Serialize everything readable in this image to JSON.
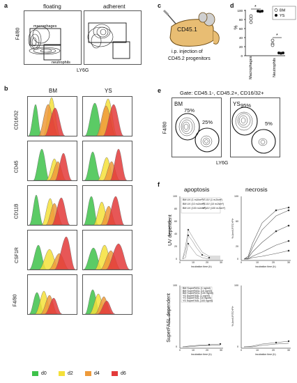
{
  "panel_labels": {
    "a": "a",
    "b": "b",
    "c": "c",
    "d": "d",
    "e": "e",
    "f": "f"
  },
  "panel_a": {
    "floating": "floating",
    "adherent": "adherent",
    "macrophages": "macrophages",
    "neutrophils": "neutrophils",
    "y_axis": "F4/80",
    "x_axis": "LY6G"
  },
  "panel_b": {
    "bm": "BM",
    "ys": "YS",
    "markers": [
      "CD16/32",
      "CD45",
      "CD11B",
      "CSF1R",
      "F4/80"
    ],
    "legend": [
      {
        "label": "d0",
        "color": "#3ec24a"
      },
      {
        "label": "d2",
        "color": "#f4e03a"
      },
      {
        "label": "d4",
        "color": "#ee9a3a"
      },
      {
        "label": "d6",
        "color": "#e33a3a"
      }
    ]
  },
  "panel_c": {
    "mouse_label": "CD45.1",
    "caption_line1": "i.p. injection of",
    "caption_line2": "CD45.2 progenitors"
  },
  "panel_d": {
    "y_axis": "%",
    "y_ticks": [
      "0",
      "20",
      "40",
      "60",
      "80",
      "100"
    ],
    "categories": [
      "Macrophages",
      "Neutrophils"
    ],
    "legend": [
      "BM",
      "YS"
    ],
    "sig": "*"
  },
  "panel_e": {
    "gate": "Gate: CD45.1-, CD45.2+, CD16/32+",
    "bm": "BM",
    "ys": "YS",
    "bm_top": "75%",
    "bm_bottom": "25%",
    "ys_top": "95%",
    "ys_bottom": "5%",
    "y_axis": "F4/80",
    "x_axis": "LY6G"
  },
  "panel_f": {
    "apoptosis": "apoptosis",
    "necrosis": "necrosis",
    "uv_dependent": "UV dependent",
    "fasl_dependent": "SuperFASL dependent",
    "y_apop": "% AnnV-FITC+",
    "y_necr": "% AnnV-FITC+PI+",
    "x_axis": "incubation time (h)",
    "ticks_y": [
      "0",
      "20",
      "40",
      "60",
      "80",
      "100"
    ],
    "ticks_x": [
      "0",
      "10",
      "20",
      "30"
    ],
    "legend_uv": [
      "BM UV (1 mJ/cm²)",
      "BM UV (10 mJ/cm²)",
      "BM UV (100 mJ/cm²)",
      "YS UV (1 mJ/cm²)",
      "YS UV (10 mJ/cm²)",
      "YS UV (100 mJ/cm²)"
    ],
    "legend_fasl": [
      "BM SuperFASL (1 ng/ml)",
      "BM SuperFASL (10 ng/ml)",
      "BM SuperFASL (100 ng/ml)",
      "YS SuperFASL (1 ng/ml)",
      "YS SuperFASL (10 ng/ml)",
      "YS SuperFASL (100 ng/ml)"
    ]
  }
}
